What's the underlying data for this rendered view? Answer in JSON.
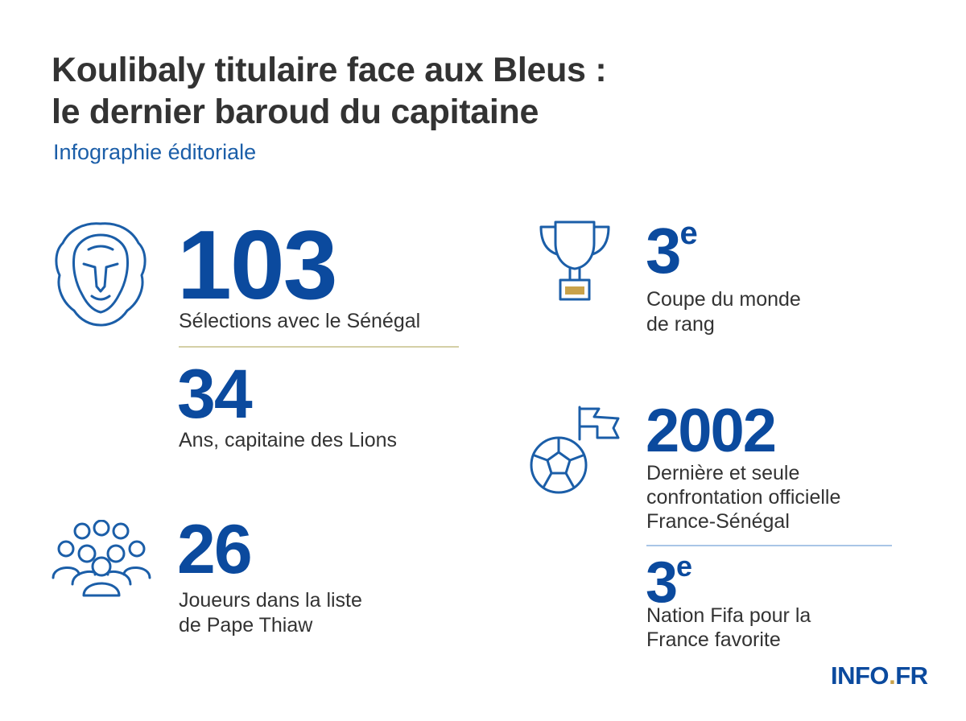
{
  "header": {
    "title_lines": [
      "Koulibaly titulaire face aux Bleus :",
      "le dernier baroud du capitaine"
    ],
    "subtitle": "Infographie éditoriale"
  },
  "stats": [
    {
      "value": 103,
      "label_lines": [
        "Sélections avec le Sénégal"
      ]
    },
    {
      "value": 34,
      "label_lines": [
        "Ans, capitaine des Lions"
      ]
    },
    {
      "value": 26,
      "label_lines": [
        "Joueurs dans la liste",
        "de Pape Thiaw"
      ]
    },
    {
      "value": 3,
      "suffix": "e",
      "label_lines": [
        "Coupe du monde",
        "de rang"
      ]
    },
    {
      "value": 2002,
      "label_lines": [
        "Dernière et seule",
        "confrontation officielle",
        "France-Sénégal"
      ]
    },
    {
      "value": 3,
      "suffix": "e",
      "label_lines": [
        "Nation Fifa pour la",
        "France favorite"
      ]
    }
  ],
  "logo": {
    "main": "INFO",
    "dot": ".",
    "end": "FR"
  }
}
